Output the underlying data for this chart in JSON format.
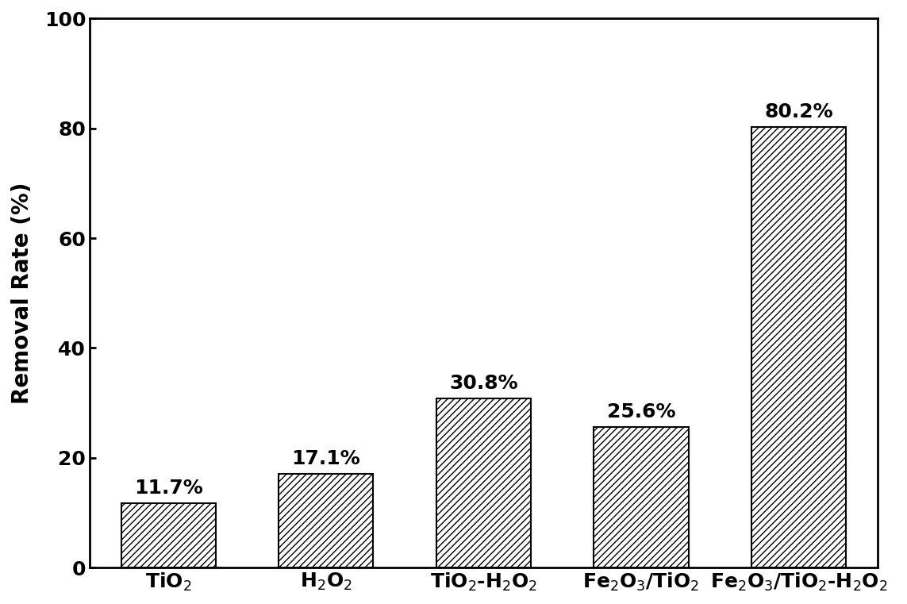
{
  "categories": [
    "TiO$_2$",
    "H$_2$O$_2$",
    "TiO$_2$-H$_2$O$_2$",
    "Fe$_2$O$_3$/TiO$_2$",
    "Fe$_2$O$_3$/TiO$_2$-H$_2$O$_2$"
  ],
  "values": [
    11.7,
    17.1,
    30.8,
    25.6,
    80.2
  ],
  "labels": [
    "11.7%",
    "17.1%",
    "30.8%",
    "25.6%",
    "80.2%"
  ],
  "ylabel": "Removal Rate (%)",
  "ylim": [
    0,
    100
  ],
  "yticks": [
    0,
    20,
    40,
    60,
    80,
    100
  ],
  "bar_color": "#ffffff",
  "bar_edgecolor": "#000000",
  "hatch": "////",
  "bar_width": 0.6,
  "label_fontsize": 18,
  "tick_fontsize": 18,
  "ylabel_fontsize": 20,
  "annotation_fontsize": 18,
  "background_color": "#ffffff",
  "figure_width": 11.43,
  "figure_height": 7.61,
  "dpi": 100
}
